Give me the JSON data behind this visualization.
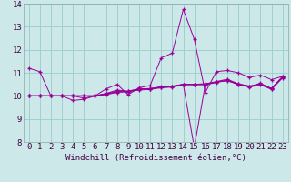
{
  "x": [
    0,
    1,
    2,
    3,
    4,
    5,
    6,
    7,
    8,
    9,
    10,
    11,
    12,
    13,
    14,
    15,
    16,
    17,
    18,
    19,
    20,
    21,
    22,
    23
  ],
  "line1": [
    11.2,
    11.05,
    10.0,
    10.0,
    9.8,
    9.85,
    10.0,
    10.3,
    10.5,
    10.05,
    10.35,
    10.45,
    11.65,
    11.85,
    13.75,
    12.45,
    10.15,
    11.05,
    11.1,
    11.0,
    10.8,
    10.9,
    10.7,
    10.85
  ],
  "line2": [
    10.0,
    10.0,
    10.0,
    10.0,
    10.0,
    9.9,
    10.0,
    10.1,
    10.25,
    10.2,
    10.3,
    10.3,
    10.4,
    10.4,
    10.5,
    7.75,
    10.5,
    10.6,
    10.65,
    10.5,
    10.4,
    10.55,
    10.3,
    10.85
  ],
  "line3": [
    10.0,
    10.0,
    10.0,
    10.0,
    10.0,
    10.0,
    10.0,
    10.1,
    10.2,
    10.2,
    10.3,
    10.3,
    10.38,
    10.42,
    10.5,
    10.5,
    10.52,
    10.6,
    10.68,
    10.52,
    10.42,
    10.52,
    10.32,
    10.82
  ],
  "line4": [
    10.0,
    10.0,
    10.0,
    10.0,
    10.0,
    10.0,
    10.0,
    10.08,
    10.18,
    10.18,
    10.28,
    10.32,
    10.38,
    10.42,
    10.5,
    10.5,
    10.52,
    10.62,
    10.72,
    10.52,
    10.42,
    10.52,
    10.32,
    10.82
  ],
  "line5": [
    10.0,
    10.0,
    10.0,
    10.0,
    10.0,
    10.0,
    10.0,
    10.05,
    10.15,
    10.18,
    10.25,
    10.28,
    10.35,
    10.38,
    10.48,
    10.48,
    10.48,
    10.58,
    10.68,
    10.48,
    10.38,
    10.48,
    10.28,
    10.78
  ],
  "bg_color": "#cce8e8",
  "line_color": "#990099",
  "grid_color": "#99cccc",
  "xlabel": "Windchill (Refroidissement éolien,°C)",
  "ylim": [
    8,
    14
  ],
  "xlim": [
    -0.5,
    23.5
  ],
  "yticks": [
    8,
    9,
    10,
    11,
    12,
    13,
    14
  ],
  "xticks": [
    0,
    1,
    2,
    3,
    4,
    5,
    6,
    7,
    8,
    9,
    10,
    11,
    12,
    13,
    14,
    15,
    16,
    17,
    18,
    19,
    20,
    21,
    22,
    23
  ],
  "tick_fontsize": 6.5,
  "label_fontsize": 6.5
}
